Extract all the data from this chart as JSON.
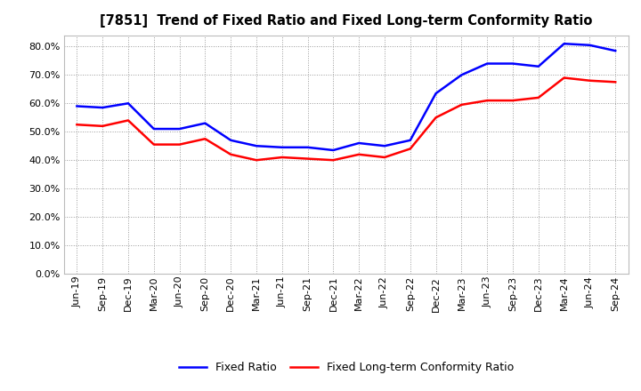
{
  "title": "[7851]  Trend of Fixed Ratio and Fixed Long-term Conformity Ratio",
  "x_labels": [
    "Jun-19",
    "Sep-19",
    "Dec-19",
    "Mar-20",
    "Jun-20",
    "Sep-20",
    "Dec-20",
    "Mar-21",
    "Jun-21",
    "Sep-21",
    "Dec-21",
    "Mar-22",
    "Jun-22",
    "Sep-22",
    "Dec-22",
    "Mar-23",
    "Jun-23",
    "Sep-23",
    "Dec-23",
    "Mar-24",
    "Jun-24",
    "Sep-24"
  ],
  "fixed_ratio": [
    59.0,
    58.5,
    60.0,
    51.0,
    51.0,
    53.0,
    47.0,
    45.0,
    44.5,
    44.5,
    43.5,
    46.0,
    45.0,
    47.0,
    63.5,
    70.0,
    74.0,
    74.0,
    73.0,
    81.0,
    80.5,
    78.5
  ],
  "fixed_lt_ratio": [
    52.5,
    52.0,
    54.0,
    45.5,
    45.5,
    47.5,
    42.0,
    40.0,
    41.0,
    40.5,
    40.0,
    42.0,
    41.0,
    44.0,
    55.0,
    59.5,
    61.0,
    61.0,
    62.0,
    69.0,
    68.0,
    67.5
  ],
  "fixed_ratio_color": "#0000FF",
  "fixed_lt_ratio_color": "#FF0000",
  "ylim": [
    0,
    84
  ],
  "yticks": [
    0,
    10,
    20,
    30,
    40,
    50,
    60,
    70,
    80
  ],
  "background_color": "#FFFFFF",
  "plot_bg_color": "#FFFFFF",
  "grid_color": "#999999",
  "line_width": 1.8,
  "title_fontsize": 10.5,
  "tick_fontsize": 8,
  "legend_fontsize": 9
}
